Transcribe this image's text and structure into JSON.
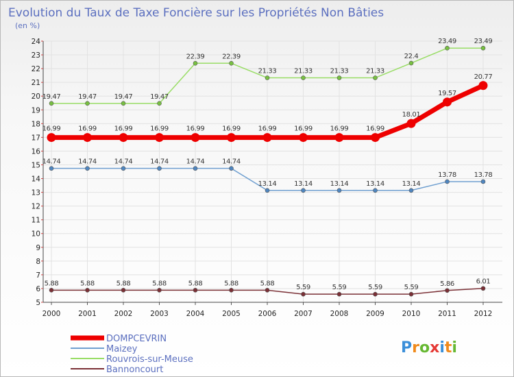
{
  "chart_data": {
    "type": "line",
    "title": "Evolution du Taux de Taxe Foncière sur les Propriétés Non Bâties",
    "subtitle": "(en %)",
    "xlabel": "",
    "ylabel": "",
    "x": [
      2000,
      2001,
      2002,
      2003,
      2004,
      2005,
      2006,
      2007,
      2008,
      2009,
      2010,
      2011,
      2012
    ],
    "ylim": [
      5,
      24
    ],
    "yticks": [
      5,
      6,
      7,
      8,
      9,
      10,
      11,
      12,
      13,
      14,
      15,
      16,
      17,
      18,
      19,
      20,
      21,
      22,
      23,
      24
    ],
    "grid": true,
    "legend_position": "bottom-left",
    "series": [
      {
        "name": "Rouvrois-sur-Meuse",
        "color": "#99dd66",
        "marker": "#77c040",
        "values": [
          19.47,
          19.47,
          19.47,
          19.47,
          22.39,
          22.39,
          21.33,
          21.33,
          21.33,
          21.33,
          22.4,
          23.49,
          23.49
        ],
        "labels": [
          "19.47",
          "19.47",
          "19.47",
          "19.47",
          "22.39",
          "22.39",
          "21.33",
          "21.33",
          "21.33",
          "21.33",
          "22.4",
          "23.49",
          "23.49"
        ]
      },
      {
        "name": "DOMPCEVRIN",
        "color": "#ee0000",
        "marker": "#ee0000",
        "bold": true,
        "values": [
          16.99,
          16.99,
          16.99,
          16.99,
          16.99,
          16.99,
          16.99,
          16.99,
          16.99,
          16.99,
          18.01,
          19.57,
          20.77
        ],
        "labels": [
          "16.99",
          "16.99",
          "16.99",
          "16.99",
          "16.99",
          "16.99",
          "16.99",
          "16.99",
          "16.99",
          "16.99",
          "18.01",
          "19.57",
          "20.77"
        ]
      },
      {
        "name": "Maizey",
        "color": "#6f9fd0",
        "marker": "#4f86c0",
        "values": [
          14.74,
          14.74,
          14.74,
          14.74,
          14.74,
          14.74,
          13.14,
          13.14,
          13.14,
          13.14,
          13.14,
          13.78,
          13.78
        ],
        "labels": [
          "14.74",
          "14.74",
          "14.74",
          "14.74",
          "14.74",
          "14.74",
          "13.14",
          "13.14",
          "13.14",
          "13.14",
          "13.14",
          "13.78",
          "13.78"
        ]
      },
      {
        "name": "Bannoncourt",
        "color": "#7a2f35",
        "marker": "#7a2f35",
        "values": [
          5.88,
          5.88,
          5.88,
          5.88,
          5.88,
          5.88,
          5.88,
          5.59,
          5.59,
          5.59,
          5.59,
          5.86,
          6.01
        ],
        "labels": [
          "5.88",
          "5.88",
          "5.88",
          "5.88",
          "5.88",
          "5.88",
          "5.88",
          "5.59",
          "5.59",
          "5.59",
          "5.59",
          "5.86",
          "6.01"
        ]
      }
    ],
    "legend_order": [
      "DOMPCEVRIN",
      "Maizey",
      "Rouvrois-sur-Meuse",
      "Bannoncourt"
    ]
  },
  "branding": {
    "logo_letters": [
      "P",
      "r",
      "o",
      "x",
      "i",
      "t",
      "i"
    ],
    "logo_colors": [
      "#3b8fd9",
      "#f08a1c",
      "#66b832",
      "#e53935",
      "#3b8fd9",
      "#f08a1c",
      "#66b832"
    ]
  }
}
